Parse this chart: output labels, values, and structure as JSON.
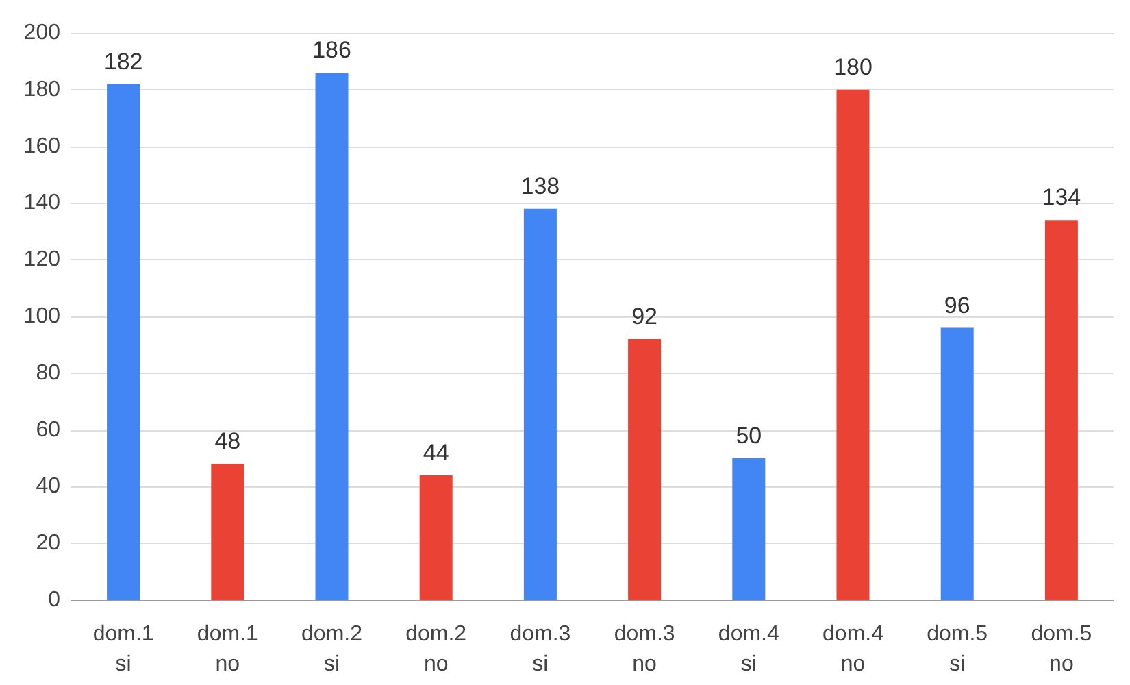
{
  "chart_data": {
    "type": "bar",
    "categories": [
      "dom.1 si",
      "dom.1 no",
      "dom.2 si",
      "dom.2 no",
      "dom.3 si",
      "dom.3 no",
      "dom.4 si",
      "dom.4 no",
      "dom.5 si",
      "dom.5 no"
    ],
    "values": [
      182,
      48,
      186,
      44,
      138,
      92,
      50,
      180,
      96,
      134
    ],
    "colors": [
      "#4285f4",
      "#ea4335",
      "#4285f4",
      "#ea4335",
      "#4285f4",
      "#ea4335",
      "#4285f4",
      "#ea4335",
      "#4285f4",
      "#ea4335"
    ],
    "ylim": [
      0,
      200
    ],
    "yticks": [
      0,
      20,
      40,
      60,
      80,
      100,
      120,
      140,
      160,
      180,
      200
    ],
    "grid": "y",
    "data_labels": true
  }
}
